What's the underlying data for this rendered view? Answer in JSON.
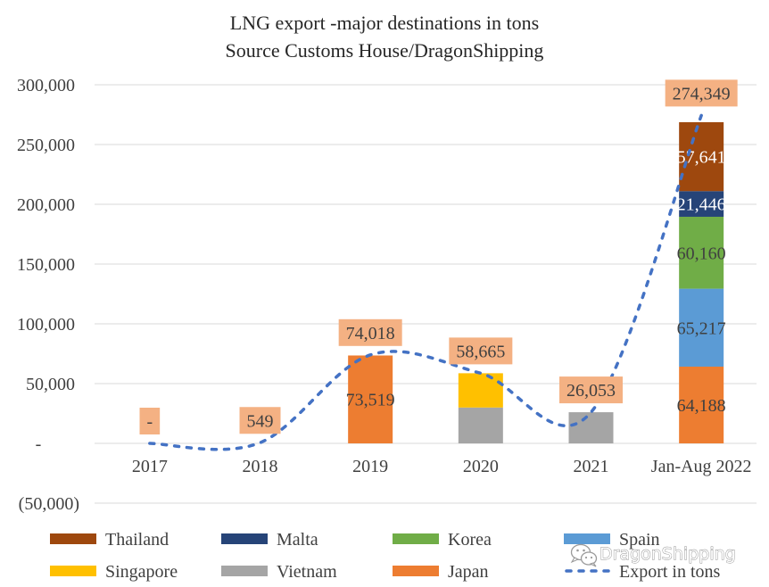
{
  "chart_data": {
    "type": "bar",
    "stacked": true,
    "title": "LNG export -major destinations in tons",
    "subtitle": "Source Customs House/DragonShipping",
    "xlabel": "",
    "ylabel": "",
    "ylim": [
      -50000,
      300000
    ],
    "yticks": [
      300000,
      250000,
      200000,
      150000,
      100000,
      50000,
      0,
      -50000
    ],
    "ytick_labels": [
      "300,000",
      "250,000",
      "200,000",
      "150,000",
      "100,000",
      "50,000",
      "-",
      "(50,000)"
    ],
    "grid": true,
    "legend_position": "bottom",
    "categories": [
      "2017",
      "2018",
      "2019",
      "2020",
      "2021",
      "Jan-Aug 2022"
    ],
    "series": [
      {
        "name": "Japan",
        "color": "#ED7D31",
        "values": [
          0,
          0,
          73519,
          0,
          0,
          64188
        ],
        "labels": [
          null,
          null,
          "73,519",
          null,
          null,
          "64,188"
        ],
        "label_color": "#404040"
      },
      {
        "name": "Vietnam",
        "color": "#A5A5A5",
        "values": [
          0,
          0,
          0,
          30000,
          26053,
          0
        ],
        "labels": [
          null,
          null,
          null,
          null,
          null,
          null
        ],
        "label_color": "#404040"
      },
      {
        "name": "Singapore",
        "color": "#FFC000",
        "values": [
          0,
          0,
          0,
          28665,
          0,
          0
        ],
        "labels": [
          null,
          null,
          null,
          null,
          null,
          null
        ],
        "label_color": "#404040"
      },
      {
        "name": "Spain",
        "color": "#5B9BD5",
        "values": [
          0,
          0,
          0,
          0,
          0,
          65217
        ],
        "labels": [
          null,
          null,
          null,
          null,
          null,
          "65,217"
        ],
        "label_color": "#404040"
      },
      {
        "name": "Korea",
        "color": "#70AD47",
        "values": [
          0,
          0,
          0,
          0,
          0,
          60160
        ],
        "labels": [
          null,
          null,
          null,
          null,
          null,
          "60,160"
        ],
        "label_color": "#404040"
      },
      {
        "name": "Malta",
        "color": "#264478",
        "values": [
          0,
          0,
          0,
          0,
          0,
          21446
        ],
        "labels": [
          null,
          null,
          null,
          null,
          null,
          "21,446"
        ],
        "label_color": "#FFFFFF"
      },
      {
        "name": "Thailand",
        "color": "#9E480E",
        "values": [
          0,
          0,
          0,
          0,
          0,
          57641
        ],
        "labels": [
          null,
          null,
          null,
          null,
          null,
          "57,641"
        ],
        "label_color": "#FFFFFF"
      }
    ],
    "line": {
      "name": "Export in tons",
      "color": "#4472C4",
      "values": [
        0,
        549,
        74018,
        58665,
        26053,
        274349
      ],
      "labels": [
        "-",
        "549",
        "74,018",
        "58,665",
        "26,053",
        "274,349"
      ],
      "label_bg": "#F4B183"
    },
    "legend": [
      "Thailand",
      "Malta",
      "Korea",
      "Spain",
      "Singapore",
      "Vietnam",
      "Japan",
      "Export in tons"
    ]
  },
  "watermark": {
    "text": "DragonShipping",
    "icon": "wechat-icon"
  }
}
